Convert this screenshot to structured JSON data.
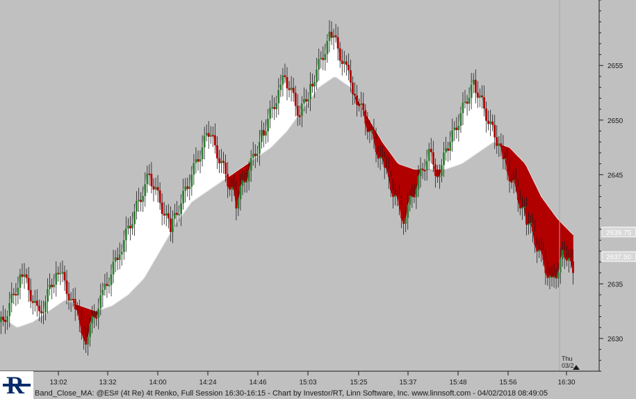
{
  "footer": {
    "text": "Band_Close_MA: @ES# (4t Re) 4t Renko, Full Session 16:30-16:15 - Chart by Investor/RT, Linn Software, Inc. www.linnsoft.com - 04/02/2018 08:49:05"
  },
  "session_marker": {
    "day": "Thu",
    "date": "03/2"
  },
  "colors": {
    "background": "#c0c0c0",
    "up_candle": "#2e7d32",
    "down_candle": "#b00000",
    "band_above": "#ffffff",
    "band_below": "#b00000",
    "ma_line": "#e0e0e0"
  },
  "chart_data": {
    "type": "candlestick-renko",
    "symbol": "@ES#",
    "title": "Band_Close_MA",
    "xlabel": "",
    "ylabel": "",
    "x_ticks": [
      "13:02",
      "13:32",
      "14:00",
      "14:24",
      "14:46",
      "15:03",
      "15:25",
      "15:37",
      "15:48",
      "15:56",
      "16:30"
    ],
    "y_ticks": [
      2630,
      2635,
      2640,
      2645,
      2650,
      2655
    ],
    "ylim": [
      2627,
      2661
    ],
    "price_tags": [
      {
        "value": "2639.75"
      },
      {
        "value": "2637.50"
      }
    ],
    "close_path": [
      2632,
      2631.5,
      2636,
      2632,
      2636.5,
      2632,
      2630,
      2634,
      2638,
      2644,
      2645,
      2640,
      2646,
      2649,
      2643,
      2642.5,
      2646,
      2649,
      2653,
      2654,
      2650.5,
      2653,
      2658,
      2654,
      2652,
      2645,
      2641,
      2647,
      2645,
      2648,
      2653.5,
      2648,
      2646,
      2641,
      2635,
      2638,
      2636
    ],
    "ma_path": [
      2632,
      2631,
      2631.5,
      2632.5,
      2633.5,
      2633,
      2632.5,
      2633,
      2634,
      2635.5,
      2638,
      2640.5,
      2642.5,
      2643.5,
      2644.5,
      2645.5,
      2646.5,
      2647.5,
      2649,
      2651,
      2653,
      2654,
      2653,
      2650.5,
      2648,
      2646,
      2645.5,
      2645.5,
      2645.5,
      2646,
      2647,
      2648,
      2647.5,
      2646,
      2643,
      2641,
      2639.5
    ]
  }
}
